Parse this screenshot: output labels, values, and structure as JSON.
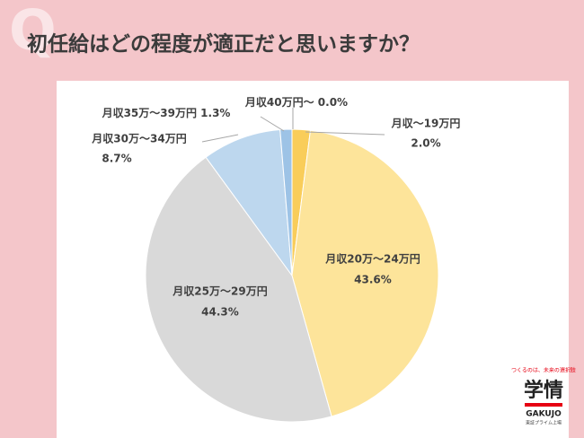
{
  "q_mark": "Q",
  "chart_data": {
    "type": "pie",
    "title": "初任給はどの程度が適正だと思いますか？",
    "categories": [
      "月収～19万円",
      "月収20万～24万円",
      "月収25万～29万円",
      "月収30万～34万円",
      "月収35万～39万円",
      "月収40万円～"
    ],
    "values": [
      2.0,
      43.6,
      44.3,
      8.7,
      1.3,
      0.0
    ],
    "value_labels": [
      "2.0%",
      "43.6%",
      "44.3%",
      "8.7%",
      "1.3%",
      "0.0%"
    ],
    "colors": [
      "#f9cd5a",
      "#fde49a",
      "#d9d9d9",
      "#bdd7ee",
      "#9dc3e6",
      "#5b9bd5"
    ]
  },
  "logo": {
    "tagline": "つくるのは、未来の選択肢",
    "name": "学情",
    "roman": "GAKUJO",
    "listing": "東証プライム上場"
  }
}
